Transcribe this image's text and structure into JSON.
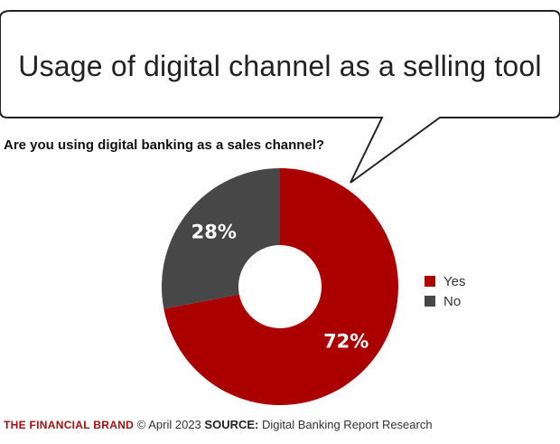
{
  "bubble": {
    "title": "Usage of digital channel as a selling tool"
  },
  "question": "Are you using digital banking as a sales channel?",
  "colors": {
    "yes": "#ab0000",
    "no": "#474747",
    "brand": "#a50f0f"
  },
  "chart_data": {
    "type": "pie",
    "donut": true,
    "categories": [
      "Yes",
      "No"
    ],
    "values": [
      72,
      28
    ],
    "data_labels": [
      "72%",
      "28%"
    ],
    "title": "",
    "legend": {
      "placement": "right",
      "entries": [
        "Yes",
        "No"
      ]
    }
  },
  "footer": {
    "brand": "THE FINANCIAL BRAND",
    "copyright": "© April 2023",
    "source_label": "SOURCE:",
    "source": "Digital Banking Report Research"
  }
}
